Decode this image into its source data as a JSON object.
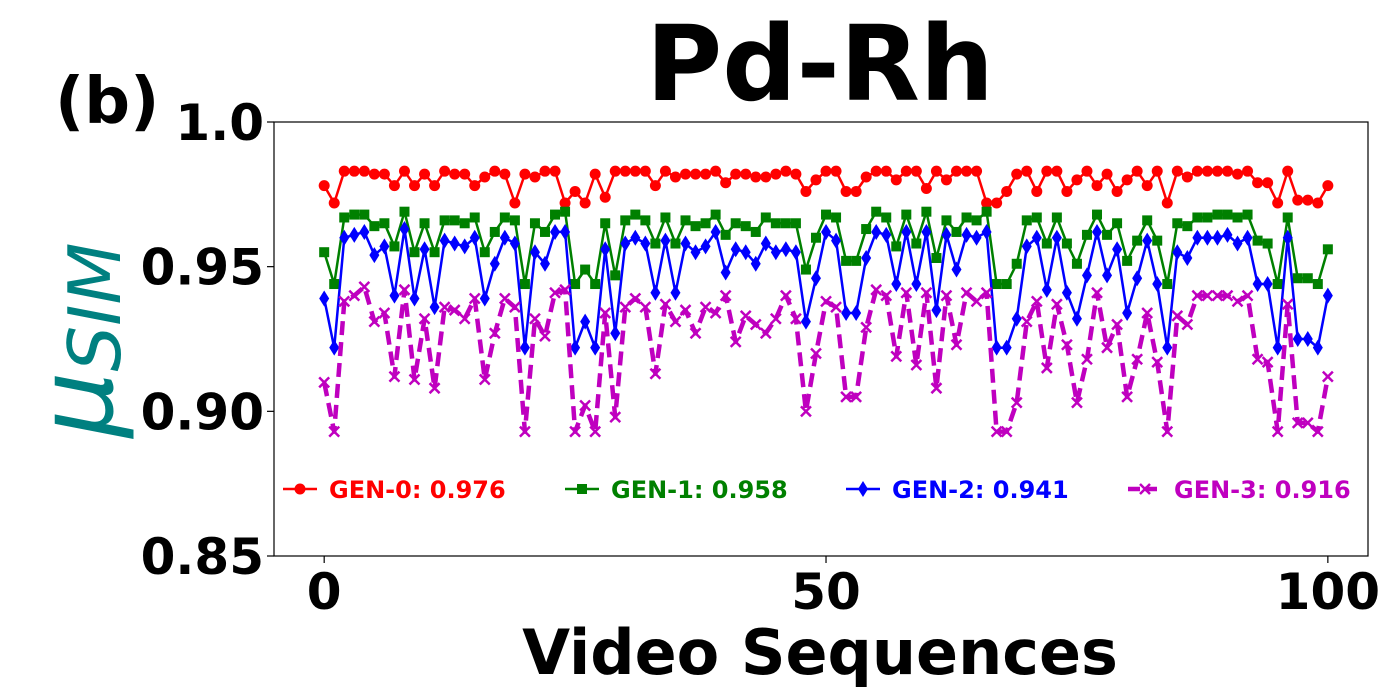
{
  "chart_data": {
    "type": "line",
    "panel_label": "(b)",
    "title": "Pd-Rh",
    "xlabel": "Video Sequences",
    "ylabel": "μ",
    "ylabel_subscript": "SIM",
    "xlim": [
      -5,
      104
    ],
    "ylim": [
      0.85,
      1.0
    ],
    "xticks": [
      0,
      50,
      100
    ],
    "xtick_labels": [
      "0",
      "50",
      "100"
    ],
    "yticks": [
      0.85,
      0.9,
      0.95,
      1.0
    ],
    "ytick_labels": [
      "0.85",
      "0.90",
      "0.95",
      "1.0"
    ],
    "legend_position": "lower-center",
    "series": [
      {
        "name": "GEN-0: 0.976",
        "color": "#ff0000",
        "marker": "circle",
        "linestyle": "solid",
        "values": [
          0.978,
          0.972,
          0.983,
          0.983,
          0.983,
          0.982,
          0.982,
          0.978,
          0.983,
          0.978,
          0.982,
          0.978,
          0.983,
          0.982,
          0.982,
          0.978,
          0.981,
          0.983,
          0.982,
          0.972,
          0.982,
          0.981,
          0.983,
          0.983,
          0.972,
          0.976,
          0.972,
          0.982,
          0.974,
          0.983,
          0.983,
          0.983,
          0.983,
          0.978,
          0.983,
          0.981,
          0.982,
          0.982,
          0.982,
          0.983,
          0.979,
          0.982,
          0.982,
          0.981,
          0.981,
          0.982,
          0.983,
          0.982,
          0.976,
          0.98,
          0.983,
          0.983,
          0.976,
          0.976,
          0.981,
          0.983,
          0.983,
          0.98,
          0.983,
          0.983,
          0.977,
          0.983,
          0.98,
          0.983,
          0.983,
          0.983,
          0.972,
          0.972,
          0.976,
          0.982,
          0.983,
          0.976,
          0.983,
          0.983,
          0.976,
          0.98,
          0.983,
          0.978,
          0.982,
          0.976,
          0.98,
          0.983,
          0.978,
          0.983,
          0.972,
          0.983,
          0.981,
          0.983,
          0.983,
          0.983,
          0.983,
          0.982,
          0.983,
          0.979,
          0.979,
          0.972,
          0.983,
          0.973,
          0.973,
          0.972,
          0.978
        ]
      },
      {
        "name": "GEN-1: 0.958",
        "color": "#008000",
        "marker": "square",
        "linestyle": "solid",
        "values": [
          0.955,
          0.944,
          0.967,
          0.968,
          0.968,
          0.964,
          0.965,
          0.957,
          0.969,
          0.955,
          0.965,
          0.955,
          0.966,
          0.966,
          0.965,
          0.967,
          0.955,
          0.962,
          0.967,
          0.966,
          0.944,
          0.965,
          0.962,
          0.968,
          0.969,
          0.944,
          0.949,
          0.944,
          0.965,
          0.947,
          0.966,
          0.968,
          0.966,
          0.958,
          0.967,
          0.958,
          0.966,
          0.964,
          0.965,
          0.968,
          0.961,
          0.965,
          0.964,
          0.962,
          0.967,
          0.965,
          0.965,
          0.965,
          0.949,
          0.96,
          0.968,
          0.967,
          0.952,
          0.952,
          0.963,
          0.969,
          0.967,
          0.957,
          0.968,
          0.958,
          0.969,
          0.953,
          0.966,
          0.962,
          0.967,
          0.966,
          0.969,
          0.944,
          0.944,
          0.951,
          0.966,
          0.967,
          0.958,
          0.967,
          0.958,
          0.951,
          0.961,
          0.968,
          0.961,
          0.965,
          0.952,
          0.959,
          0.966,
          0.959,
          0.944,
          0.965,
          0.964,
          0.967,
          0.967,
          0.968,
          0.968,
          0.967,
          0.968,
          0.959,
          0.958,
          0.944,
          0.967,
          0.946,
          0.946,
          0.944,
          0.956
        ]
      },
      {
        "name": "GEN-2: 0.941",
        "color": "#0000ff",
        "marker": "diamond",
        "linestyle": "solid",
        "values": [
          0.939,
          0.922,
          0.96,
          0.961,
          0.962,
          0.954,
          0.957,
          0.94,
          0.963,
          0.939,
          0.956,
          0.936,
          0.959,
          0.958,
          0.957,
          0.96,
          0.939,
          0.951,
          0.96,
          0.958,
          0.922,
          0.955,
          0.951,
          0.962,
          0.962,
          0.922,
          0.931,
          0.922,
          0.956,
          0.927,
          0.958,
          0.96,
          0.958,
          0.941,
          0.959,
          0.941,
          0.958,
          0.955,
          0.957,
          0.962,
          0.948,
          0.956,
          0.955,
          0.951,
          0.958,
          0.955,
          0.956,
          0.955,
          0.931,
          0.946,
          0.962,
          0.959,
          0.934,
          0.934,
          0.953,
          0.962,
          0.961,
          0.944,
          0.962,
          0.944,
          0.962,
          0.935,
          0.961,
          0.949,
          0.961,
          0.96,
          0.962,
          0.922,
          0.922,
          0.932,
          0.957,
          0.96,
          0.942,
          0.96,
          0.941,
          0.932,
          0.947,
          0.962,
          0.947,
          0.956,
          0.934,
          0.946,
          0.959,
          0.944,
          0.922,
          0.955,
          0.953,
          0.96,
          0.96,
          0.96,
          0.961,
          0.958,
          0.96,
          0.944,
          0.944,
          0.922,
          0.96,
          0.925,
          0.925,
          0.922,
          0.94
        ]
      },
      {
        "name": "GEN-3: 0.916",
        "color": "#bf00bf",
        "marker": "x",
        "linestyle": "dashed",
        "values": [
          0.91,
          0.893,
          0.938,
          0.94,
          0.943,
          0.931,
          0.934,
          0.912,
          0.942,
          0.911,
          0.932,
          0.908,
          0.936,
          0.935,
          0.932,
          0.939,
          0.911,
          0.927,
          0.939,
          0.936,
          0.893,
          0.932,
          0.926,
          0.941,
          0.942,
          0.893,
          0.902,
          0.893,
          0.934,
          0.898,
          0.936,
          0.939,
          0.936,
          0.913,
          0.937,
          0.931,
          0.935,
          0.927,
          0.936,
          0.934,
          0.94,
          0.924,
          0.933,
          0.93,
          0.927,
          0.932,
          0.94,
          0.932,
          0.9,
          0.92,
          0.938,
          0.936,
          0.905,
          0.905,
          0.929,
          0.942,
          0.94,
          0.919,
          0.941,
          0.916,
          0.941,
          0.908,
          0.94,
          0.923,
          0.941,
          0.938,
          0.941,
          0.893,
          0.893,
          0.903,
          0.931,
          0.938,
          0.915,
          0.937,
          0.923,
          0.903,
          0.918,
          0.941,
          0.922,
          0.93,
          0.905,
          0.918,
          0.934,
          0.917,
          0.893,
          0.933,
          0.93,
          0.94,
          0.94,
          0.94,
          0.94,
          0.938,
          0.94,
          0.918,
          0.917,
          0.893,
          0.937,
          0.896,
          0.896,
          0.893,
          0.912
        ]
      }
    ]
  }
}
